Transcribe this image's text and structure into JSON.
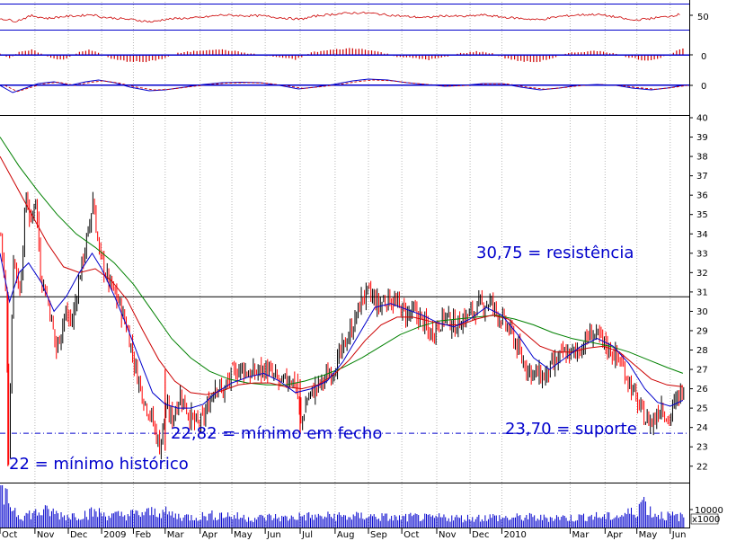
{
  "chart_data": {
    "type": "candlestick",
    "annotations": {
      "resistance": {
        "label": "30,75 = resistência",
        "value": 30.75
      },
      "closing_low": {
        "label": "22,82 = mínimo em fecho",
        "value": 22.82
      },
      "support": {
        "label": "23,70 = suporte",
        "value": 23.7
      },
      "all_time_low": {
        "label": "22 = mínimo histórico",
        "value": 22
      }
    },
    "price_axis": {
      "ticks": [
        "22",
        "23",
        "24",
        "25",
        "26",
        "27",
        "28",
        "29",
        "30",
        "31",
        "32",
        "33",
        "34",
        "35",
        "36",
        "37",
        "38",
        "39",
        "40"
      ],
      "ylim": [
        21.2,
        40.0
      ]
    },
    "oscillator_axes": {
      "rsi_tick": "50",
      "macd_hist_tick": "0",
      "macd_tick": "0"
    },
    "volume_axis": {
      "tick": "10000",
      "unit_label": "x1000"
    },
    "months": [
      {
        "label": "Oct",
        "day": 0
      },
      {
        "label": "Nov",
        "day": 22
      },
      {
        "label": "Dec",
        "day": 43
      },
      {
        "label": "2009",
        "day": 64
      },
      {
        "label": "Feb",
        "day": 84
      },
      {
        "label": "Mar",
        "day": 104
      },
      {
        "label": "Apr",
        "day": 126
      },
      {
        "label": "May",
        "day": 146
      },
      {
        "label": "Jun",
        "day": 167
      },
      {
        "label": "Jul",
        "day": 189
      },
      {
        "label": "Aug",
        "day": 211
      },
      {
        "label": "Sep",
        "day": 232
      },
      {
        "label": "Oct",
        "day": 253
      },
      {
        "label": "Nov",
        "day": 275
      },
      {
        "label": "Dec",
        "day": 296
      },
      {
        "label": "2010",
        "day": 316
      },
      {
        "label": "Mar",
        "day": 359
      },
      {
        "label": "Apr",
        "day": 381
      },
      {
        "label": "May",
        "day": 401
      },
      {
        "label": "Jun",
        "day": 422
      }
    ],
    "price_path": [
      [
        0,
        34
      ],
      [
        3,
        31
      ],
      [
        5,
        22.8
      ],
      [
        8,
        33
      ],
      [
        12,
        31
      ],
      [
        16,
        36
      ],
      [
        19,
        34.5
      ],
      [
        22,
        36
      ],
      [
        25,
        32
      ],
      [
        30,
        30.5
      ],
      [
        35,
        28
      ],
      [
        40,
        29.8
      ],
      [
        45,
        29.5
      ],
      [
        50,
        32
      ],
      [
        55,
        34
      ],
      [
        58,
        35.8
      ],
      [
        62,
        33
      ],
      [
        68,
        31.5
      ],
      [
        74,
        30.5
      ],
      [
        80,
        29
      ],
      [
        85,
        27
      ],
      [
        90,
        25.5
      ],
      [
        95,
        24.5
      ],
      [
        100,
        23
      ],
      [
        104,
        25
      ],
      [
        108,
        24.5
      ],
      [
        113,
        25.7
      ],
      [
        118,
        24.8
      ],
      [
        122,
        24.2
      ],
      [
        126,
        24.2
      ],
      [
        130,
        25
      ],
      [
        135,
        26.3
      ],
      [
        140,
        25.8
      ],
      [
        146,
        26.8
      ],
      [
        152,
        27.1
      ],
      [
        157,
        26.7
      ],
      [
        162,
        26.9
      ],
      [
        167,
        27
      ],
      [
        172,
        26.6
      ],
      [
        177,
        26.2
      ],
      [
        182,
        26.6
      ],
      [
        186,
        26.2
      ],
      [
        189,
        24.2
      ],
      [
        193,
        25.5
      ],
      [
        198,
        26
      ],
      [
        204,
        26.5
      ],
      [
        211,
        27.2
      ],
      [
        216,
        28.2
      ],
      [
        222,
        29.3
      ],
      [
        228,
        30.8
      ],
      [
        232,
        30.9
      ],
      [
        238,
        30.3
      ],
      [
        244,
        30.7
      ],
      [
        250,
        30.3
      ],
      [
        255,
        29.9
      ],
      [
        260,
        29.9
      ],
      [
        265,
        29.6
      ],
      [
        270,
        28.8
      ],
      [
        275,
        29.3
      ],
      [
        280,
        29.8
      ],
      [
        286,
        29.2
      ],
      [
        291,
        29.6
      ],
      [
        296,
        29.9
      ],
      [
        302,
        30.3
      ],
      [
        308,
        30.5
      ],
      [
        312,
        30
      ],
      [
        316,
        29.5
      ],
      [
        322,
        28.8
      ],
      [
        328,
        27.5
      ],
      [
        335,
        26.8
      ],
      [
        342,
        26.6
      ],
      [
        348,
        27.2
      ],
      [
        354,
        27.8
      ],
      [
        360,
        27.8
      ],
      [
        366,
        28.2
      ],
      [
        372,
        28.9
      ],
      [
        378,
        28.5
      ],
      [
        384,
        28
      ],
      [
        390,
        27.4
      ],
      [
        395,
        26.5
      ],
      [
        401,
        25.2
      ],
      [
        406,
        24.4
      ],
      [
        411,
        24.3
      ],
      [
        416,
        25.3
      ],
      [
        420,
        24.3
      ],
      [
        426,
        25.5
      ],
      [
        430,
        26.1
      ]
    ],
    "ma_blue": [
      [
        0,
        33
      ],
      [
        6,
        30.5
      ],
      [
        12,
        32
      ],
      [
        18,
        32.5
      ],
      [
        26,
        31.5
      ],
      [
        34,
        30
      ],
      [
        42,
        30.8
      ],
      [
        50,
        32
      ],
      [
        58,
        33
      ],
      [
        64,
        32.2
      ],
      [
        72,
        30.8
      ],
      [
        80,
        29.2
      ],
      [
        88,
        27.5
      ],
      [
        96,
        25.8
      ],
      [
        104,
        25.2
      ],
      [
        112,
        25
      ],
      [
        120,
        25
      ],
      [
        128,
        25.2
      ],
      [
        136,
        25.8
      ],
      [
        146,
        26.3
      ],
      [
        156,
        26.6
      ],
      [
        166,
        26.8
      ],
      [
        176,
        26.4
      ],
      [
        186,
        25.8
      ],
      [
        196,
        26
      ],
      [
        206,
        26.4
      ],
      [
        216,
        27.4
      ],
      [
        226,
        28.8
      ],
      [
        236,
        30.2
      ],
      [
        246,
        30.4
      ],
      [
        256,
        30.1
      ],
      [
        266,
        29.8
      ],
      [
        276,
        29.4
      ],
      [
        286,
        29.2
      ],
      [
        296,
        29.6
      ],
      [
        306,
        30.2
      ],
      [
        316,
        29.8
      ],
      [
        326,
        28.8
      ],
      [
        336,
        27.6
      ],
      [
        346,
        27
      ],
      [
        356,
        27.6
      ],
      [
        366,
        28.2
      ],
      [
        376,
        28.6
      ],
      [
        386,
        28.2
      ],
      [
        396,
        27.3
      ],
      [
        406,
        26
      ],
      [
        414,
        25.3
      ],
      [
        422,
        25.1
      ],
      [
        430,
        25.4
      ]
    ],
    "ma_red": [
      [
        0,
        38
      ],
      [
        10,
        36.5
      ],
      [
        20,
        35
      ],
      [
        30,
        33.5
      ],
      [
        40,
        32.3
      ],
      [
        50,
        32
      ],
      [
        60,
        32.2
      ],
      [
        70,
        31.6
      ],
      [
        80,
        30.6
      ],
      [
        90,
        29
      ],
      [
        100,
        27.5
      ],
      [
        110,
        26.4
      ],
      [
        120,
        25.8
      ],
      [
        130,
        25.7
      ],
      [
        140,
        25.9
      ],
      [
        150,
        26.2
      ],
      [
        160,
        26.3
      ],
      [
        170,
        26.3
      ],
      [
        180,
        26.1
      ],
      [
        190,
        26
      ],
      [
        200,
        26.2
      ],
      [
        210,
        26.7
      ],
      [
        220,
        27.5
      ],
      [
        230,
        28.5
      ],
      [
        240,
        29.3
      ],
      [
        250,
        29.7
      ],
      [
        260,
        29.7
      ],
      [
        270,
        29.5
      ],
      [
        280,
        29.3
      ],
      [
        290,
        29.3
      ],
      [
        300,
        29.6
      ],
      [
        310,
        29.8
      ],
      [
        320,
        29.6
      ],
      [
        330,
        28.9
      ],
      [
        340,
        28.2
      ],
      [
        350,
        27.9
      ],
      [
        360,
        27.9
      ],
      [
        370,
        28.1
      ],
      [
        380,
        28.2
      ],
      [
        390,
        27.9
      ],
      [
        400,
        27.2
      ],
      [
        410,
        26.5
      ],
      [
        420,
        26.2
      ],
      [
        430,
        26.1
      ]
    ],
    "ma_green": [
      [
        0,
        39
      ],
      [
        12,
        37.5
      ],
      [
        24,
        36.2
      ],
      [
        36,
        35
      ],
      [
        48,
        34
      ],
      [
        60,
        33.3
      ],
      [
        72,
        32.5
      ],
      [
        84,
        31.4
      ],
      [
        96,
        30
      ],
      [
        108,
        28.6
      ],
      [
        120,
        27.6
      ],
      [
        132,
        26.9
      ],
      [
        144,
        26.5
      ],
      [
        156,
        26.3
      ],
      [
        168,
        26.2
      ],
      [
        180,
        26.2
      ],
      [
        192,
        26.4
      ],
      [
        204,
        26.7
      ],
      [
        216,
        27.1
      ],
      [
        228,
        27.6
      ],
      [
        240,
        28.2
      ],
      [
        252,
        28.8
      ],
      [
        264,
        29.2
      ],
      [
        276,
        29.5
      ],
      [
        288,
        29.6
      ],
      [
        300,
        29.7
      ],
      [
        312,
        29.8
      ],
      [
        324,
        29.6
      ],
      [
        336,
        29.3
      ],
      [
        348,
        28.9
      ],
      [
        360,
        28.6
      ],
      [
        372,
        28.4
      ],
      [
        384,
        28.2
      ],
      [
        396,
        27.9
      ],
      [
        408,
        27.5
      ],
      [
        420,
        27.1
      ],
      [
        430,
        26.8
      ]
    ],
    "rsi_range": [
      0,
      100
    ],
    "rsi_path": [
      [
        0,
        45
      ],
      [
        10,
        35
      ],
      [
        20,
        55
      ],
      [
        30,
        45
      ],
      [
        40,
        52
      ],
      [
        50,
        55
      ],
      [
        58,
        60
      ],
      [
        64,
        50
      ],
      [
        74,
        45
      ],
      [
        84,
        40
      ],
      [
        96,
        32
      ],
      [
        104,
        42
      ],
      [
        114,
        45
      ],
      [
        126,
        48
      ],
      [
        140,
        58
      ],
      [
        152,
        55
      ],
      [
        164,
        55
      ],
      [
        176,
        48
      ],
      [
        189,
        42
      ],
      [
        200,
        55
      ],
      [
        212,
        62
      ],
      [
        224,
        66
      ],
      [
        232,
        65
      ],
      [
        244,
        58
      ],
      [
        256,
        52
      ],
      [
        268,
        48
      ],
      [
        280,
        55
      ],
      [
        292,
        52
      ],
      [
        304,
        58
      ],
      [
        316,
        50
      ],
      [
        328,
        45
      ],
      [
        340,
        40
      ],
      [
        352,
        52
      ],
      [
        364,
        58
      ],
      [
        376,
        60
      ],
      [
        388,
        50
      ],
      [
        398,
        38
      ],
      [
        410,
        45
      ],
      [
        420,
        52
      ],
      [
        430,
        62
      ]
    ],
    "macd_hist": [
      [
        0,
        0.2
      ],
      [
        6,
        -0.4
      ],
      [
        12,
        0.3
      ],
      [
        20,
        0.6
      ],
      [
        26,
        0.2
      ],
      [
        32,
        -0.4
      ],
      [
        40,
        -0.6
      ],
      [
        48,
        0.2
      ],
      [
        56,
        0.6
      ],
      [
        62,
        0.3
      ],
      [
        70,
        -0.5
      ],
      [
        80,
        -0.8
      ],
      [
        92,
        -0.9
      ],
      [
        102,
        -0.5
      ],
      [
        112,
        0.2
      ],
      [
        124,
        0.5
      ],
      [
        136,
        0.7
      ],
      [
        146,
        0.5
      ],
      [
        156,
        0.2
      ],
      [
        166,
        -0.1
      ],
      [
        176,
        -0.3
      ],
      [
        186,
        -0.6
      ],
      [
        196,
        0.3
      ],
      [
        208,
        0.6
      ],
      [
        220,
        0.8
      ],
      [
        230,
        0.7
      ],
      [
        240,
        0.3
      ],
      [
        250,
        -0.2
      ],
      [
        260,
        -0.4
      ],
      [
        270,
        -0.6
      ],
      [
        280,
        -0.3
      ],
      [
        290,
        0.2
      ],
      [
        300,
        0.4
      ],
      [
        310,
        0.2
      ],
      [
        318,
        -0.4
      ],
      [
        328,
        -0.8
      ],
      [
        338,
        -0.9
      ],
      [
        348,
        -0.4
      ],
      [
        358,
        0.2
      ],
      [
        368,
        0.4
      ],
      [
        378,
        0.5
      ],
      [
        388,
        0.1
      ],
      [
        396,
        -0.3
      ],
      [
        406,
        -0.7
      ],
      [
        414,
        -0.5
      ],
      [
        422,
        0.1
      ],
      [
        430,
        0.8
      ]
    ],
    "macd_line": [
      [
        0,
        0
      ],
      [
        8,
        -0.8
      ],
      [
        16,
        -0.3
      ],
      [
        24,
        0.2
      ],
      [
        34,
        0.4
      ],
      [
        44,
        0
      ],
      [
        54,
        0.4
      ],
      [
        62,
        0.6
      ],
      [
        72,
        0.3
      ],
      [
        82,
        -0.2
      ],
      [
        94,
        -0.6
      ],
      [
        104,
        -0.5
      ],
      [
        116,
        -0.2
      ],
      [
        128,
        0.1
      ],
      [
        140,
        0.3
      ],
      [
        152,
        0.35
      ],
      [
        164,
        0.3
      ],
      [
        176,
        0
      ],
      [
        188,
        -0.4
      ],
      [
        198,
        -0.2
      ],
      [
        210,
        0.1
      ],
      [
        222,
        0.5
      ],
      [
        232,
        0.7
      ],
      [
        244,
        0.6
      ],
      [
        256,
        0.3
      ],
      [
        268,
        0.1
      ],
      [
        280,
        -0.1
      ],
      [
        292,
        0
      ],
      [
        304,
        0.2
      ],
      [
        316,
        0.2
      ],
      [
        328,
        -0.2
      ],
      [
        340,
        -0.5
      ],
      [
        352,
        -0.3
      ],
      [
        364,
        0
      ],
      [
        376,
        0.1
      ],
      [
        388,
        0
      ],
      [
        398,
        -0.3
      ],
      [
        410,
        -0.5
      ],
      [
        420,
        -0.3
      ],
      [
        430,
        0
      ]
    ],
    "volume_path": [
      [
        0,
        14000
      ],
      [
        5,
        11000
      ],
      [
        12,
        5000
      ],
      [
        20,
        6000
      ],
      [
        30,
        7000
      ],
      [
        40,
        5000
      ],
      [
        50,
        5500
      ],
      [
        60,
        6500
      ],
      [
        70,
        5000
      ],
      [
        80,
        5500
      ],
      [
        90,
        6000
      ],
      [
        100,
        7000
      ],
      [
        110,
        5000
      ],
      [
        120,
        4500
      ],
      [
        130,
        5000
      ],
      [
        140,
        5500
      ],
      [
        150,
        4500
      ],
      [
        160,
        4000
      ],
      [
        170,
        4500
      ],
      [
        180,
        4000
      ],
      [
        190,
        5000
      ],
      [
        200,
        4500
      ],
      [
        210,
        5000
      ],
      [
        220,
        4500
      ],
      [
        230,
        5000
      ],
      [
        240,
        4500
      ],
      [
        250,
        4000
      ],
      [
        260,
        4500
      ],
      [
        270,
        4000
      ],
      [
        280,
        4500
      ],
      [
        290,
        4000
      ],
      [
        300,
        4200
      ],
      [
        310,
        4500
      ],
      [
        320,
        4000
      ],
      [
        330,
        4500
      ],
      [
        340,
        4000
      ],
      [
        350,
        4500
      ],
      [
        360,
        4000
      ],
      [
        370,
        5000
      ],
      [
        380,
        4500
      ],
      [
        390,
        5000
      ],
      [
        400,
        7000
      ],
      [
        404,
        12000
      ],
      [
        410,
        6000
      ],
      [
        420,
        5000
      ],
      [
        430,
        4500
      ]
    ],
    "volume_range": [
      0,
      15000
    ],
    "grid": "vertical dotted lines at month starts",
    "colors": {
      "down": "#ff0000",
      "up": "#000000",
      "ma_fast": "#0000cc",
      "ma_mid": "#cc0000",
      "ma_slow": "#008000",
      "support_line": "#0000cc",
      "resistance_line": "#000000",
      "panel_border": "#0000cc"
    }
  }
}
